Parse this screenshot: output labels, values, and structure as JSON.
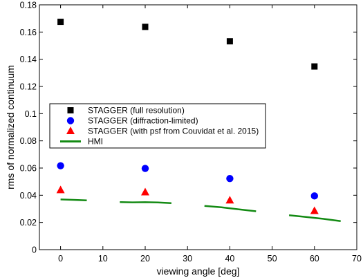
{
  "chart_data": {
    "type": "scatter",
    "title": "",
    "xlabel": "viewing angle [deg]",
    "ylabel": "rms of normalized continuum",
    "xlim": [
      -5,
      70
    ],
    "ylim": [
      0,
      0.18
    ],
    "xticks": [
      0,
      10,
      20,
      30,
      40,
      50,
      60,
      70
    ],
    "yticks": [
      0,
      0.02,
      0.04,
      0.06,
      0.08,
      0.1,
      0.12,
      0.14,
      0.16,
      0.18
    ],
    "grid": false,
    "legend_position": "center-left",
    "series": [
      {
        "name": "STAGGER (full resolution)",
        "marker": "square",
        "color": "#000000",
        "x": [
          0,
          20,
          40,
          60
        ],
        "y": [
          0.1675,
          0.1638,
          0.1532,
          0.1347
        ]
      },
      {
        "name": "STAGGER (diffraction-limited)",
        "marker": "circle",
        "color": "#0000ff",
        "x": [
          0,
          20,
          40,
          60
        ],
        "y": [
          0.0617,
          0.0597,
          0.0523,
          0.0395
        ]
      },
      {
        "name": "STAGGER (with psf from Couvidat et al. 2015)",
        "marker": "triangle",
        "color": "#ff0000",
        "x": [
          0,
          20,
          40,
          60
        ],
        "y": [
          0.0438,
          0.0422,
          0.0362,
          0.0285
        ]
      },
      {
        "name": "HMI",
        "marker": "line",
        "color": "#138a13",
        "segments": [
          {
            "x": [
              0,
              3,
              6.2
            ],
            "y": [
              0.0369,
              0.0366,
              0.0362
            ]
          },
          {
            "x": [
              14,
              17,
              20,
              23,
              26.2
            ],
            "y": [
              0.035,
              0.0348,
              0.0349,
              0.0347,
              0.0342
            ]
          },
          {
            "x": [
              34,
              38,
              42,
              46.2
            ],
            "y": [
              0.0322,
              0.0311,
              0.0297,
              0.0282
            ]
          },
          {
            "x": [
              54,
              58,
              62,
              66.2
            ],
            "y": [
              0.0253,
              0.024,
              0.0227,
              0.021
            ]
          }
        ]
      }
    ]
  }
}
